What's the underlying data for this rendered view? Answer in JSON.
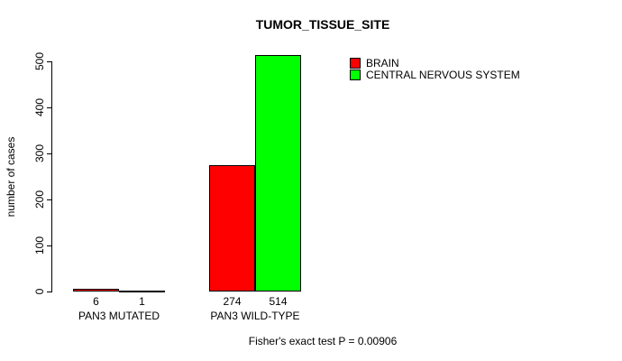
{
  "chart_data": {
    "type": "bar",
    "title": "TUMOR_TISSUE_SITE",
    "ylabel": "number of cases",
    "xlabel": "",
    "ylim": [
      0,
      500
    ],
    "yticks": [
      0,
      100,
      200,
      300,
      400,
      500
    ],
    "categories": [
      "PAN3 MUTATED",
      "PAN3 WILD-TYPE"
    ],
    "series": [
      {
        "name": "BRAIN",
        "color": "#ff0000",
        "values": [
          6,
          274
        ]
      },
      {
        "name": "CENTRAL NERVOUS SYSTEM",
        "color": "#00ff00",
        "values": [
          1,
          514
        ]
      }
    ],
    "bar_value_labels": [
      [
        "6",
        "274"
      ],
      [
        "1",
        "514"
      ]
    ],
    "legend_position": "top-right",
    "grid": false,
    "bar_outline_color": "#000000",
    "annotation": "Fisher's exact test P = 0.00906"
  }
}
